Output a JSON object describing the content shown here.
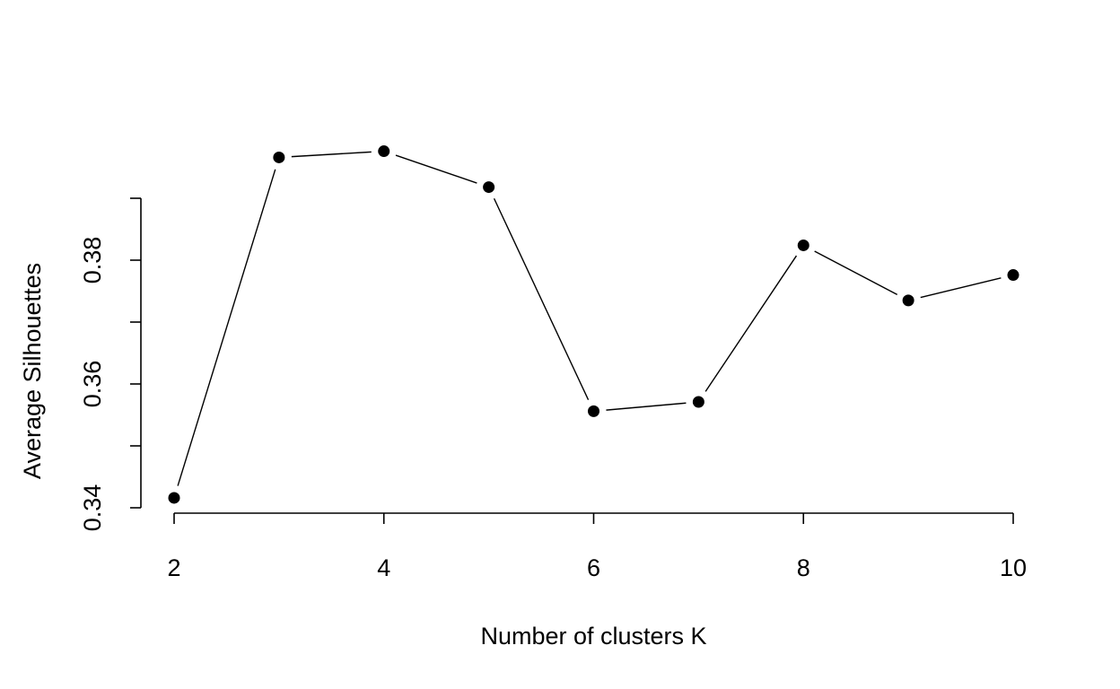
{
  "chart_data": {
    "type": "line",
    "xlabel": "Number of clusters K",
    "ylabel": "Average Silhouettes",
    "x": [
      2,
      3,
      4,
      5,
      6,
      7,
      8,
      9,
      10
    ],
    "values": [
      0.3416,
      0.3966,
      0.3976,
      0.3918,
      0.3556,
      0.3571,
      0.3824,
      0.3735,
      0.3776
    ],
    "xlim": [
      2,
      10
    ],
    "ylim": [
      0.34,
      0.39
    ],
    "x_ticks": [
      2,
      4,
      6,
      8,
      10
    ],
    "x_tick_labels": [
      "2",
      "4",
      "6",
      "8",
      "10"
    ],
    "y_ticks": [
      0.34,
      0.35,
      0.36,
      0.37,
      0.38,
      0.39
    ],
    "y_tick_labels": [
      "0.34",
      "",
      "0.36",
      "",
      "0.38",
      ""
    ],
    "grid": false,
    "legend": "none",
    "marker": "filled-circle",
    "color": "#000000"
  }
}
